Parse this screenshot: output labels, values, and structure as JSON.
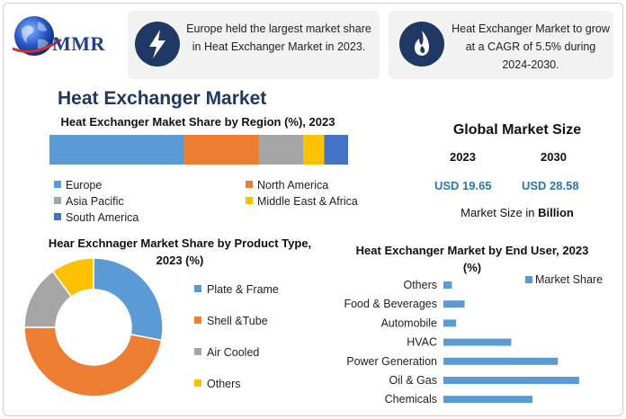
{
  "brand": {
    "name": "MMR"
  },
  "info_boxes": [
    {
      "icon": "lightning-icon",
      "text": "Europe held the largest market share in Heat Exchanger Market in 2023."
    },
    {
      "icon": "flame-icon",
      "text": "Heat Exchanger Market to grow at a CAGR of 5.5% during 2024-2030."
    }
  ],
  "main_title": "Heat Exchanger Market",
  "global_market_size": {
    "title": "Global Market Size",
    "years": [
      "2023",
      "2030"
    ],
    "values": [
      "USD 19.65",
      "USD 28.58"
    ],
    "note_prefix": "Market Size in ",
    "note_unit": "Billion"
  },
  "colors": {
    "blue": "#5b9bd5",
    "orange": "#ed7d31",
    "gray": "#a5a5a5",
    "yellow": "#ffc000",
    "darkblue": "#4472c4",
    "navy": "#1f3864",
    "value_blue": "#2e75b6"
  },
  "chart_data": [
    {
      "type": "bar",
      "orientation": "horizontal-stacked",
      "title": "Heat Exchanger Maket Share by Region (%), 2023",
      "categories": [
        "Europe",
        "North America",
        "Asia Pacific",
        "Middle East & Africa",
        "South America"
      ],
      "values": [
        45,
        25,
        15,
        7,
        8
      ],
      "colors": [
        "#5b9bd5",
        "#ed7d31",
        "#a5a5a5",
        "#ffc000",
        "#4472c4"
      ],
      "legend_position": "bottom"
    },
    {
      "type": "pie",
      "variant": "donut",
      "title": "Hear Exchnager Market Share by Product Type, 2023 (%)",
      "categories": [
        "Plate & Frame",
        "Shell &Tube",
        "Air Cooled",
        "Others"
      ],
      "values": [
        28,
        47,
        15,
        10
      ],
      "colors": [
        "#5b9bd5",
        "#ed7d31",
        "#a5a5a5",
        "#ffc000"
      ],
      "legend_position": "right"
    },
    {
      "type": "bar",
      "orientation": "horizontal",
      "title": "Heat Exchanger Market by End User, 2023 (%)",
      "categories": [
        "Others",
        "Food & Beverages",
        "Automobile",
        "HVAC",
        "Power Generation",
        "Oil & Gas",
        "Chemicals"
      ],
      "series": [
        {
          "name": "Market Share",
          "values": [
            2,
            5,
            3,
            16,
            27,
            32,
            21
          ]
        }
      ],
      "color": "#5b9bd5",
      "xlim": [
        0,
        35
      ],
      "grid": false,
      "legend_position": "top-right"
    }
  ]
}
